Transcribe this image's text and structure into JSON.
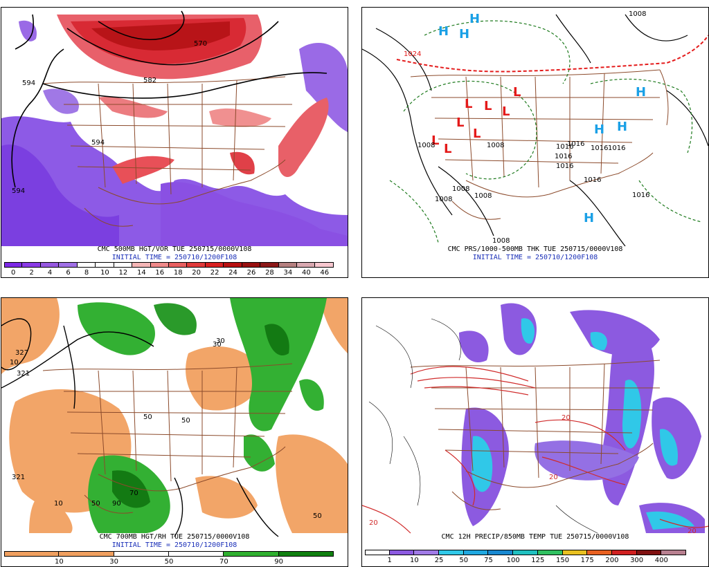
{
  "panels": [
    {
      "id": "p1",
      "caption_line1": "CMC 500MB HGT/VOR TUE 250715/0000V108",
      "caption_line2": "INITIAL TIME = 250710/1200F108",
      "contour_labels": [
        "594",
        "582",
        "570",
        "594",
        "594"
      ],
      "legend": {
        "labels": [
          "0",
          "2",
          "4",
          "6",
          "8",
          "10",
          "12",
          "14",
          "16",
          "18",
          "20",
          "22",
          "24",
          "26",
          "28",
          "34",
          "40",
          "46"
        ],
        "colors": [
          "#7d29e6",
          "#8a3ae6",
          "#9658e0",
          "#a070e6",
          "#ffffff",
          "#ffffff",
          "#ffffff",
          "#f5b6b6",
          "#ef8a8a",
          "#e86060",
          "#e03a3a",
          "#d82020",
          "#b81010",
          "#981010",
          "#8c1818",
          "#b58080",
          "#d8a8b0",
          "#f8c8d0"
        ]
      }
    },
    {
      "id": "p2",
      "caption_line1": "CMC PRS/1000-500MB THK TUE 250715/0000V108",
      "caption_line2": "INITIAL TIME = 250710/1200F108",
      "high_symbol": "H",
      "low_symbol": "L",
      "contour_labels": [
        "1024",
        "1008",
        "1008",
        "1016",
        "1016",
        "1016",
        "1016",
        "1016",
        "1016",
        "1008",
        "1008",
        "1008",
        "1008",
        "1008",
        "1016",
        "1016"
      ]
    },
    {
      "id": "p3",
      "caption_line1": "CMC 700MB HGT/RH TUE 250715/0000V108",
      "caption_line2": "INITIAL TIME = 250710/1200F108",
      "contour_labels": [
        "327",
        "321",
        "321",
        "10",
        "10",
        "30",
        "50",
        "70",
        "90",
        "50",
        "50",
        "30",
        "50"
      ],
      "legend": {
        "labels": [
          "10",
          "30",
          "50",
          "70",
          "90"
        ],
        "colors": [
          "#f0a060",
          "#f0a060",
          "#ffffff",
          "#ffffff",
          "#30b030",
          "#108010"
        ]
      }
    },
    {
      "id": "p4",
      "caption_line1": "CMC 12H PRECIP/850MB TEMP TUE 250715/0000V108",
      "contour_labels": [
        "20",
        "20",
        "20",
        "20"
      ],
      "legend": {
        "labels": [
          "1",
          "10",
          "25",
          "50",
          "75",
          "100",
          "125",
          "150",
          "175",
          "200",
          "300",
          "400"
        ],
        "colors": [
          "#ffffff",
          "#8c5ae0",
          "#a07ae6",
          "#30c8e8",
          "#20a8e0",
          "#1888d0",
          "#20c0c0",
          "#30c060",
          "#e8c020",
          "#e86020",
          "#d02020",
          "#801010",
          "#b88090"
        ]
      }
    }
  ]
}
